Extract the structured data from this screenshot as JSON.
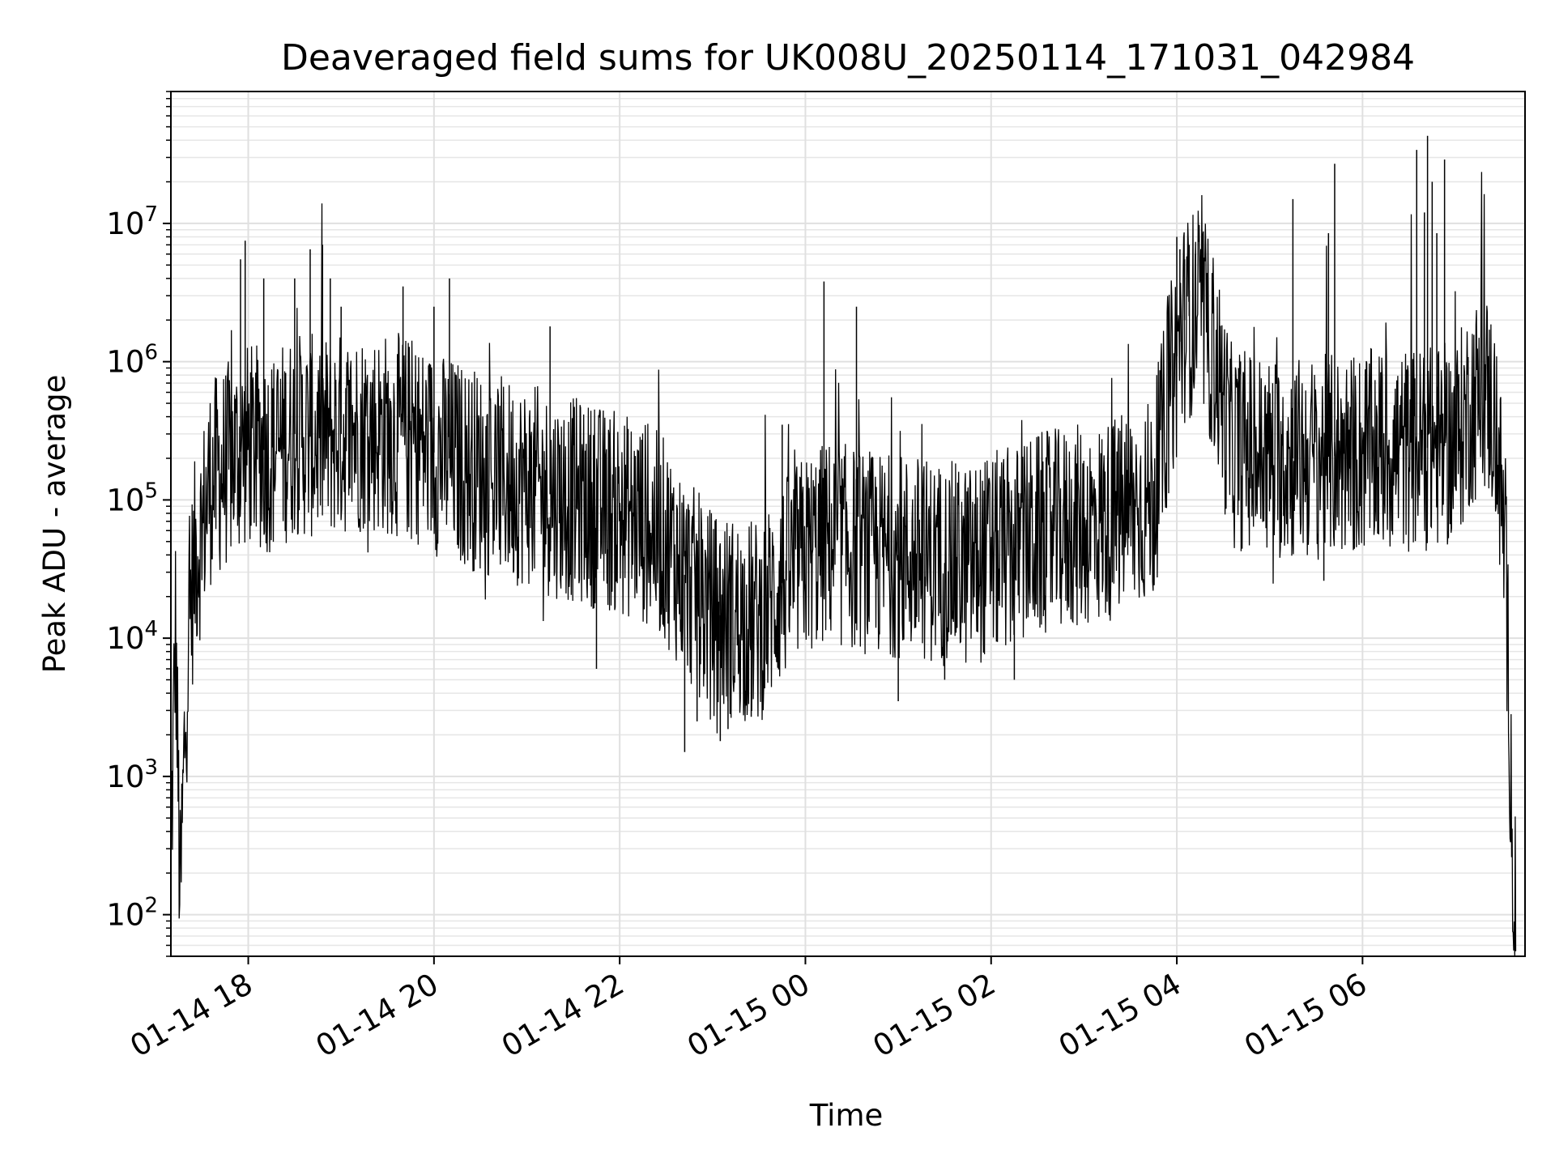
{
  "chart_data": {
    "type": "line",
    "title": "Deaveraged field sums for UK008U_20250114_171031_042984",
    "xlabel": "Time",
    "ylabel": "Peak ADU - average",
    "yscale": "log",
    "ylim": [
      50,
      90000000
    ],
    "xlim": [
      "2025-01-14 17:10",
      "2025-01-15 07:45"
    ],
    "grid": "major and minor",
    "line_color": "#000000",
    "x_ticks": [
      {
        "label": "01-14 18",
        "value": "2025-01-14 18:00"
      },
      {
        "label": "01-14 20",
        "value": "2025-01-14 20:00"
      },
      {
        "label": "01-14 22",
        "value": "2025-01-14 22:00"
      },
      {
        "label": "01-15 00",
        "value": "2025-01-15 00:00"
      },
      {
        "label": "01-15 02",
        "value": "2025-01-15 02:00"
      },
      {
        "label": "01-15 04",
        "value": "2025-01-15 04:00"
      },
      {
        "label": "01-15 06",
        "value": "2025-01-15 06:00"
      }
    ],
    "y_ticks": [
      {
        "base": "10",
        "exp": "2",
        "value": 100
      },
      {
        "base": "10",
        "exp": "3",
        "value": 1000
      },
      {
        "base": "10",
        "exp": "4",
        "value": 10000
      },
      {
        "base": "10",
        "exp": "5",
        "value": 100000
      },
      {
        "base": "10",
        "exp": "6",
        "value": 1000000
      },
      {
        "base": "10",
        "exp": "7",
        "value": 10000000
      }
    ],
    "series": [
      {
        "points": [
          [
            "2025-01-14 17:10",
            250
          ],
          [
            "2025-01-14 17:13",
            12000
          ],
          [
            "2025-01-14 17:16",
            110
          ],
          [
            "2025-01-14 17:19",
            2000
          ],
          [
            "2025-01-14 17:22",
            15000
          ],
          [
            "2025-01-14 17:26",
            40000
          ],
          [
            "2025-01-14 17:30",
            60000
          ],
          [
            "2025-01-14 17:35",
            130000
          ],
          [
            "2025-01-14 17:40",
            150000
          ],
          [
            "2025-01-14 17:50",
            200000
          ],
          [
            "2025-01-14 18:00",
            250000
          ],
          [
            "2025-01-14 18:15",
            220000
          ],
          [
            "2025-01-14 18:30",
            300000
          ],
          [
            "2025-01-14 18:45",
            280000
          ],
          [
            "2025-01-14 19:00",
            300000
          ],
          [
            "2025-01-14 19:15",
            320000
          ],
          [
            "2025-01-14 19:30",
            300000
          ],
          [
            "2025-01-14 19:45",
            280000
          ],
          [
            "2025-01-14 20:00",
            220000
          ],
          [
            "2025-01-14 20:15",
            190000
          ],
          [
            "2025-01-14 20:30",
            160000
          ],
          [
            "2025-01-14 20:45",
            140000
          ],
          [
            "2025-01-14 21:00",
            130000
          ],
          [
            "2025-01-14 21:15",
            110000
          ],
          [
            "2025-01-14 21:30",
            100000
          ],
          [
            "2025-01-14 21:45",
            90000
          ],
          [
            "2025-01-14 22:00",
            80000
          ],
          [
            "2025-01-14 22:15",
            70000
          ],
          [
            "2025-01-14 22:30",
            50000
          ],
          [
            "2025-01-14 22:45",
            25000
          ],
          [
            "2025-01-14 23:00",
            15000
          ],
          [
            "2025-01-14 23:15",
            14000
          ],
          [
            "2025-01-14 23:30",
            13000
          ],
          [
            "2025-01-14 23:45",
            25000
          ],
          [
            "2025-01-15 00:00",
            40000
          ],
          [
            "2025-01-15 00:15",
            50000
          ],
          [
            "2025-01-15 00:30",
            45000
          ],
          [
            "2025-01-15 00:45",
            40000
          ],
          [
            "2025-01-15 01:00",
            40000
          ],
          [
            "2025-01-15 01:15",
            38000
          ],
          [
            "2025-01-15 01:30",
            35000
          ],
          [
            "2025-01-15 01:45",
            33000
          ],
          [
            "2025-01-15 02:00",
            40000
          ],
          [
            "2025-01-15 02:15",
            45000
          ],
          [
            "2025-01-15 02:30",
            55000
          ],
          [
            "2025-01-15 02:45",
            60000
          ],
          [
            "2025-01-15 03:00",
            65000
          ],
          [
            "2025-01-15 03:15",
            70000
          ],
          [
            "2025-01-15 03:30",
            85000
          ],
          [
            "2025-01-15 03:45",
            100000
          ],
          [
            "2025-01-15 03:55",
            600000
          ],
          [
            "2025-01-15 04:05",
            2000000
          ],
          [
            "2025-01-15 04:15",
            2500000
          ],
          [
            "2025-01-15 04:25",
            1000000
          ],
          [
            "2025-01-15 04:35",
            250000
          ],
          [
            "2025-01-15 05:00",
            200000
          ],
          [
            "2025-01-15 05:30",
            200000
          ],
          [
            "2025-01-15 06:00",
            220000
          ],
          [
            "2025-01-15 06:30",
            230000
          ],
          [
            "2025-01-15 07:00",
            250000
          ],
          [
            "2025-01-15 07:10",
            500000
          ],
          [
            "2025-01-15 07:20",
            600000
          ],
          [
            "2025-01-15 07:25",
            400000
          ],
          [
            "2025-01-15 07:30",
            100000
          ],
          [
            "2025-01-15 07:33",
            20000
          ],
          [
            "2025-01-15 07:36",
            1000
          ],
          [
            "2025-01-15 07:38",
            60
          ],
          [
            "2025-01-15 07:39",
            120
          ]
        ],
        "spikes": [
          [
            "2025-01-14 17:55",
            5500000
          ],
          [
            "2025-01-14 17:58",
            7500000
          ],
          [
            "2025-01-14 18:10",
            4000000
          ],
          [
            "2025-01-14 18:30",
            4000000
          ],
          [
            "2025-01-14 18:40",
            6500000
          ],
          [
            "2025-01-14 18:48",
            7000000
          ],
          [
            "2025-01-14 18:53",
            4000000
          ],
          [
            "2025-01-14 19:00",
            2500000
          ],
          [
            "2025-01-14 19:40",
            3500000
          ],
          [
            "2025-01-14 20:00",
            2500000
          ],
          [
            "2025-01-14 20:10",
            4000000
          ],
          [
            "2025-01-14 21:15",
            1800000
          ],
          [
            "2025-01-14 23:45",
            350000
          ],
          [
            "2025-01-15 00:12",
            3800000
          ],
          [
            "2025-01-15 00:33",
            2500000
          ],
          [
            "2025-01-15 04:00",
            8000000
          ],
          [
            "2025-01-15 04:02",
            6500000
          ],
          [
            "2025-01-15 04:05",
            5500000
          ],
          [
            "2025-01-15 04:08",
            7000000
          ],
          [
            "2025-01-15 04:12",
            6000000
          ],
          [
            "2025-01-15 05:15",
            15000000
          ],
          [
            "2025-01-15 05:38",
            8500000
          ],
          [
            "2025-01-15 05:42",
            27000000
          ],
          [
            "2025-01-15 06:35",
            34000000
          ],
          [
            "2025-01-15 06:40",
            12000000
          ],
          [
            "2025-01-15 06:42",
            43000000
          ],
          [
            "2025-01-15 06:45",
            20000000
          ],
          [
            "2025-01-15 06:53",
            29000000
          ],
          [
            "2025-01-15 06:48",
            8500000
          ]
        ],
        "dips": [
          [
            "2025-01-14 21:45",
            6000
          ],
          [
            "2025-01-14 22:42",
            1500
          ],
          [
            "2025-01-14 22:50",
            2500
          ],
          [
            "2025-01-14 23:05",
            1800
          ],
          [
            "2025-01-14 23:10",
            2200
          ],
          [
            "2025-01-14 23:25",
            2700
          ],
          [
            "2025-01-15 01:00",
            3500
          ],
          [
            "2025-01-15 01:30",
            5000
          ],
          [
            "2025-01-15 02:15",
            5000
          ],
          [
            "2025-01-15 05:35",
            26000
          ]
        ]
      }
    ]
  }
}
